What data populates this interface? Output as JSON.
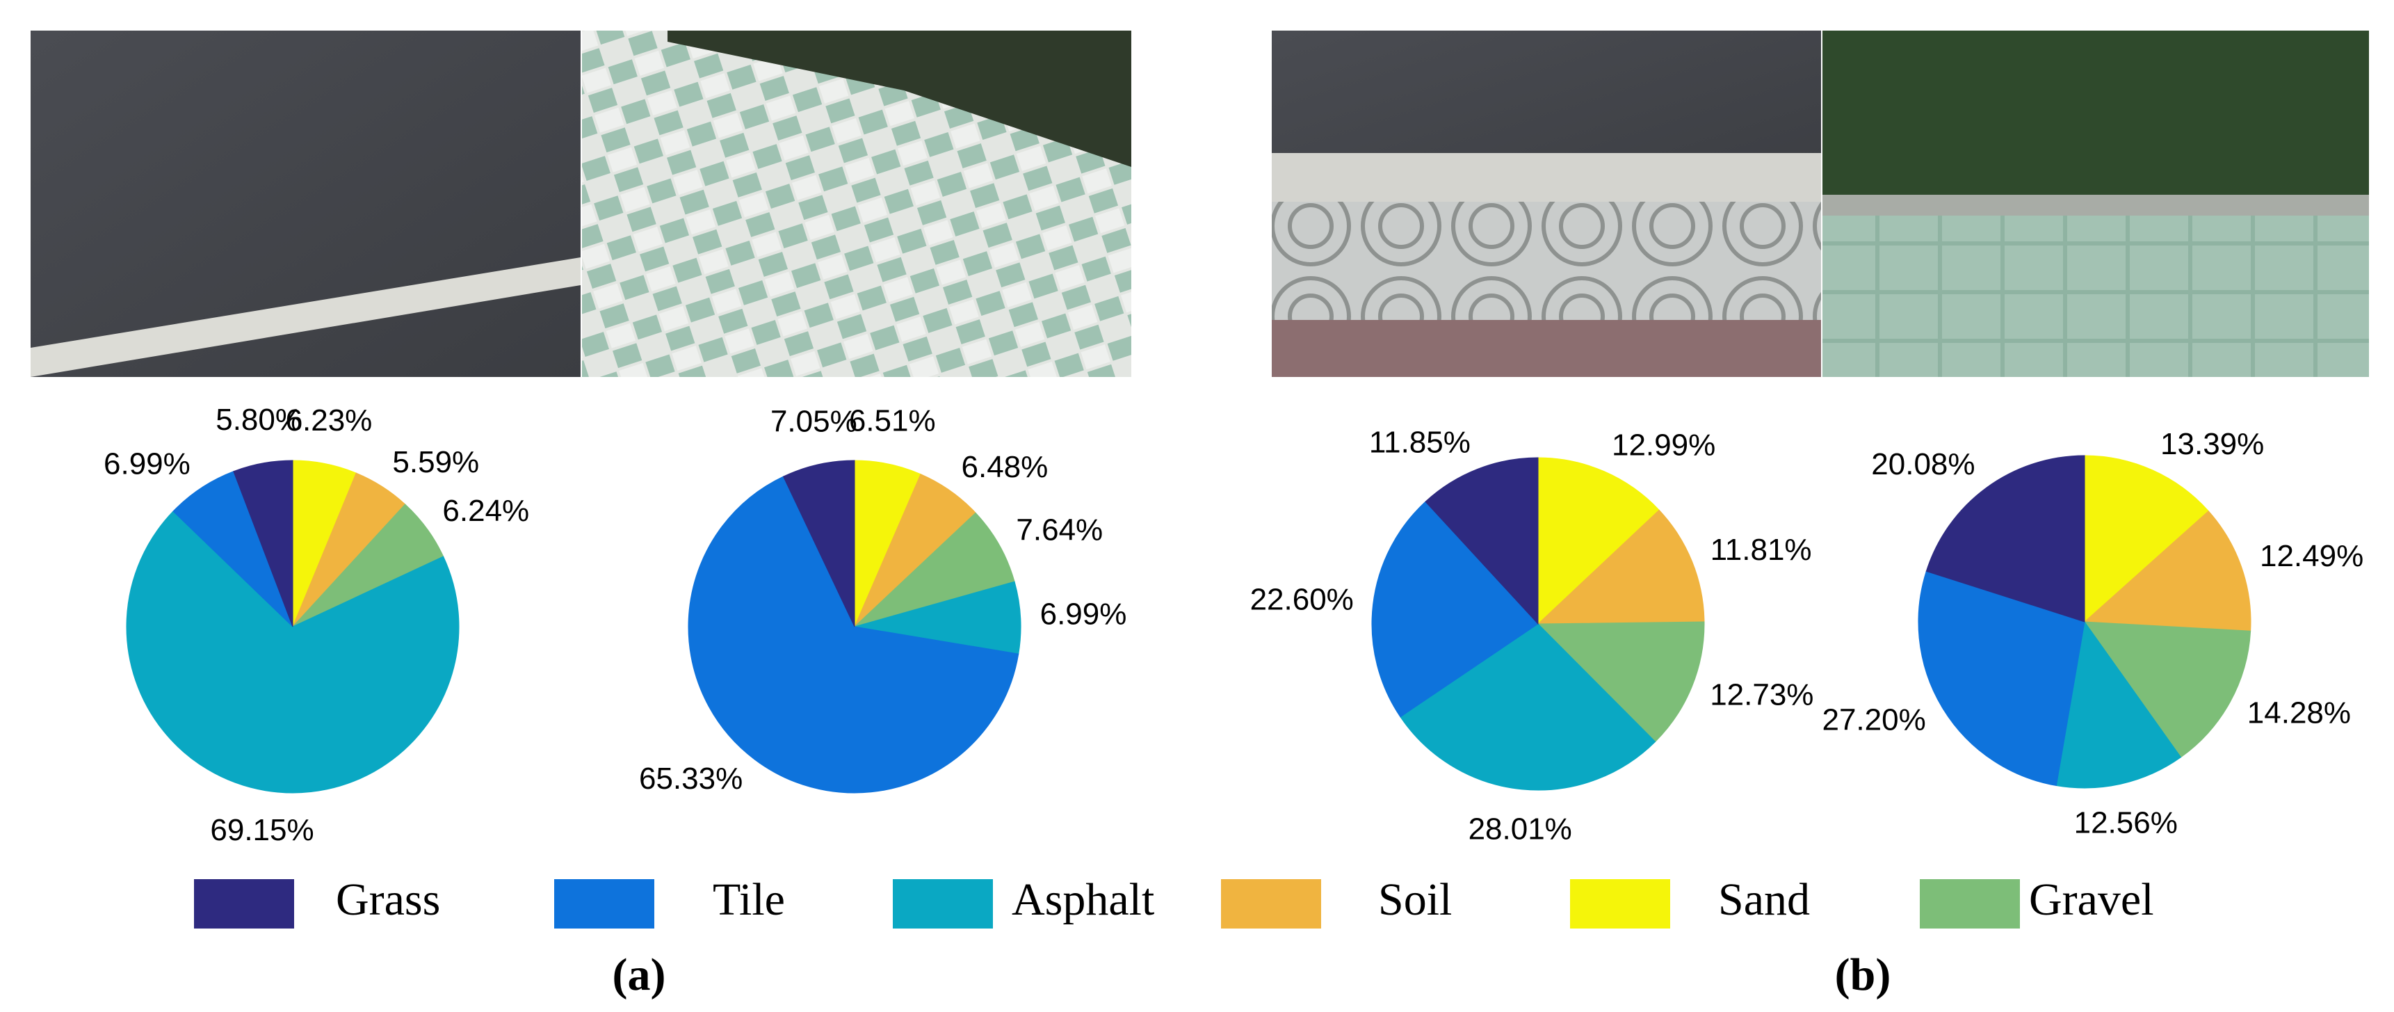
{
  "chart_data": [
    {
      "type": "pie",
      "categories": [
        "Sand",
        "Soil",
        "Gravel",
        "Asphalt",
        "Tile",
        "Grass"
      ],
      "values": [
        6.23,
        5.59,
        6.24,
        69.15,
        6.99,
        5.8
      ],
      "value_labels": [
        "6.23%",
        "5.59%",
        "6.24%",
        "69.15%",
        "6.99%",
        "5.80%"
      ],
      "colors": [
        "#f5f50a",
        "#f0b440",
        "#7dbe78",
        "#0aa8c3",
        "#0e73dc",
        "#2e2a80"
      ]
    },
    {
      "type": "pie",
      "categories": [
        "Sand",
        "Soil",
        "Gravel",
        "Asphalt",
        "Tile",
        "Grass"
      ],
      "values": [
        6.51,
        6.48,
        7.64,
        6.99,
        65.33,
        7.05
      ],
      "value_labels": [
        "6.51%",
        "6.48%",
        "7.64%",
        "6.99%",
        "65.33%",
        "7.05%"
      ],
      "colors": [
        "#f5f50a",
        "#f0b440",
        "#7dbe78",
        "#0aa8c3",
        "#0e73dc",
        "#2e2a80"
      ]
    },
    {
      "type": "pie",
      "categories": [
        "Sand",
        "Soil",
        "Gravel",
        "Asphalt",
        "Tile",
        "Grass"
      ],
      "values": [
        12.99,
        11.81,
        12.73,
        28.01,
        22.6,
        11.85
      ],
      "value_labels": [
        "12.99%",
        "11.81%",
        "12.73%",
        "28.01%",
        "22.60%",
        "11.85%"
      ],
      "colors": [
        "#f5f50a",
        "#f0b440",
        "#7dbe78",
        "#0aa8c3",
        "#0e73dc",
        "#2e2a80"
      ]
    },
    {
      "type": "pie",
      "categories": [
        "Sand",
        "Soil",
        "Gravel",
        "Asphalt",
        "Tile",
        "Grass"
      ],
      "values": [
        13.39,
        12.49,
        14.28,
        12.56,
        27.2,
        20.08
      ],
      "value_labels": [
        "13.39%",
        "12.49%",
        "14.28%",
        "12.56%",
        "27.20%",
        "20.08%"
      ],
      "colors": [
        "#f5f50a",
        "#f0b440",
        "#7dbe78",
        "#0aa8c3",
        "#0e73dc",
        "#2e2a80"
      ]
    }
  ],
  "panels": [
    "(a)",
    "(b)"
  ]
}
